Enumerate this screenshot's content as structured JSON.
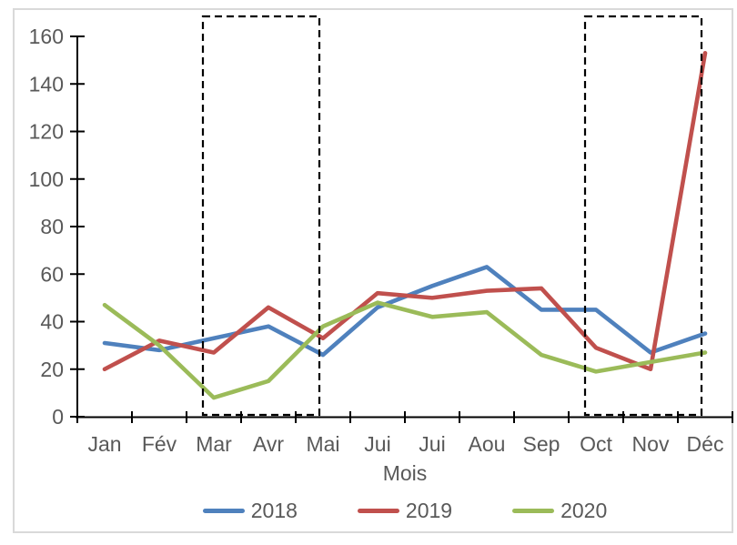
{
  "chart_data": {
    "type": "line",
    "title": "",
    "xlabel": "Mois",
    "ylabel": "",
    "ylim": [
      0,
      160
    ],
    "yticks": [
      0,
      20,
      40,
      60,
      80,
      100,
      120,
      140,
      160
    ],
    "grid": false,
    "legend_position": "bottom",
    "categories": [
      "Jan",
      "Fév",
      "Mar",
      "Avr",
      "Mai",
      "Jui",
      "Jui",
      "Aou",
      "Sep",
      "Oct",
      "Nov",
      "Déc"
    ],
    "series": [
      {
        "name": "2018",
        "color": "#4F81BD",
        "values": [
          31,
          28,
          33,
          38,
          26,
          46,
          55,
          63,
          45,
          45,
          27,
          35
        ]
      },
      {
        "name": "2019",
        "color": "#C0504D",
        "values": [
          20,
          32,
          27,
          46,
          33,
          52,
          50,
          53,
          54,
          29,
          20,
          153
        ]
      },
      {
        "name": "2020",
        "color": "#9BBB59",
        "values": [
          47,
          30,
          8,
          15,
          38,
          48,
          42,
          44,
          26,
          19,
          23,
          27
        ]
      }
    ],
    "annotations": {
      "highlight_boxes": [
        {
          "from": "Mar",
          "to": "Mai",
          "style": "black-dashed-rectangle"
        },
        {
          "from": "Oct",
          "to": "Déc",
          "style": "black-dashed-rectangle"
        }
      ]
    }
  },
  "colors": {
    "axis": "#000000",
    "tick_text": "#595959",
    "frame_border": "#D9D9D9",
    "background": "#FFFFFF",
    "dashed_box": "#000000"
  }
}
